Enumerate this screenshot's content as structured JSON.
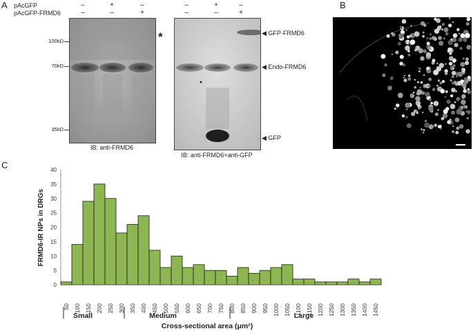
{
  "panels": {
    "a": "A",
    "b": "B",
    "c": "C"
  },
  "blots": {
    "row_labels": [
      "pAcGFP",
      "pAcGFP-FRMD6"
    ],
    "lanes": [
      {
        "pAcGFP": "–",
        "pAcGFP_FRMD6": "–"
      },
      {
        "pAcGFP": "+",
        "pAcGFP_FRMD6": "–"
      },
      {
        "pAcGFP": "–",
        "pAcGFP_FRMD6": "+"
      }
    ],
    "markers": [
      "100kD",
      "70kD",
      "35kD"
    ],
    "star": "*",
    "left_caption": "IB: anti-FRMD6",
    "right_caption": "IB: anti-FRMD6+anti-GFP",
    "band_labels": [
      "GFP-FRMD6",
      "Endo-FRMD6",
      "GFP"
    ]
  },
  "chart_data": {
    "type": "bar",
    "ylabel": "FRMD6-IR NPs in DRGs",
    "xlabel": "Cross-sectional area (μm²)",
    "ylim": [
      0,
      40
    ],
    "yticks": [
      0,
      5,
      10,
      15,
      20,
      25,
      30,
      35,
      40
    ],
    "bar_color": "#8db552",
    "categories": [
      "50",
      "100",
      "150",
      "200",
      "250",
      "300",
      "350",
      "400",
      "450",
      "500",
      "550",
      "600",
      "650",
      "700",
      "750",
      "800",
      "850",
      "900",
      "950",
      "1000",
      "1050",
      "1100",
      "1150",
      "1200",
      "1250",
      "1300",
      "1350",
      "1400",
      "1450"
    ],
    "values": [
      1,
      14,
      29,
      35,
      30,
      18,
      21,
      24,
      12,
      6,
      10,
      6,
      7,
      5,
      5,
      3,
      6,
      4,
      5,
      6,
      7,
      2,
      2,
      1,
      1,
      1,
      2,
      1,
      2
    ],
    "size_groups": [
      "Small",
      "Medium",
      "Large"
    ]
  }
}
